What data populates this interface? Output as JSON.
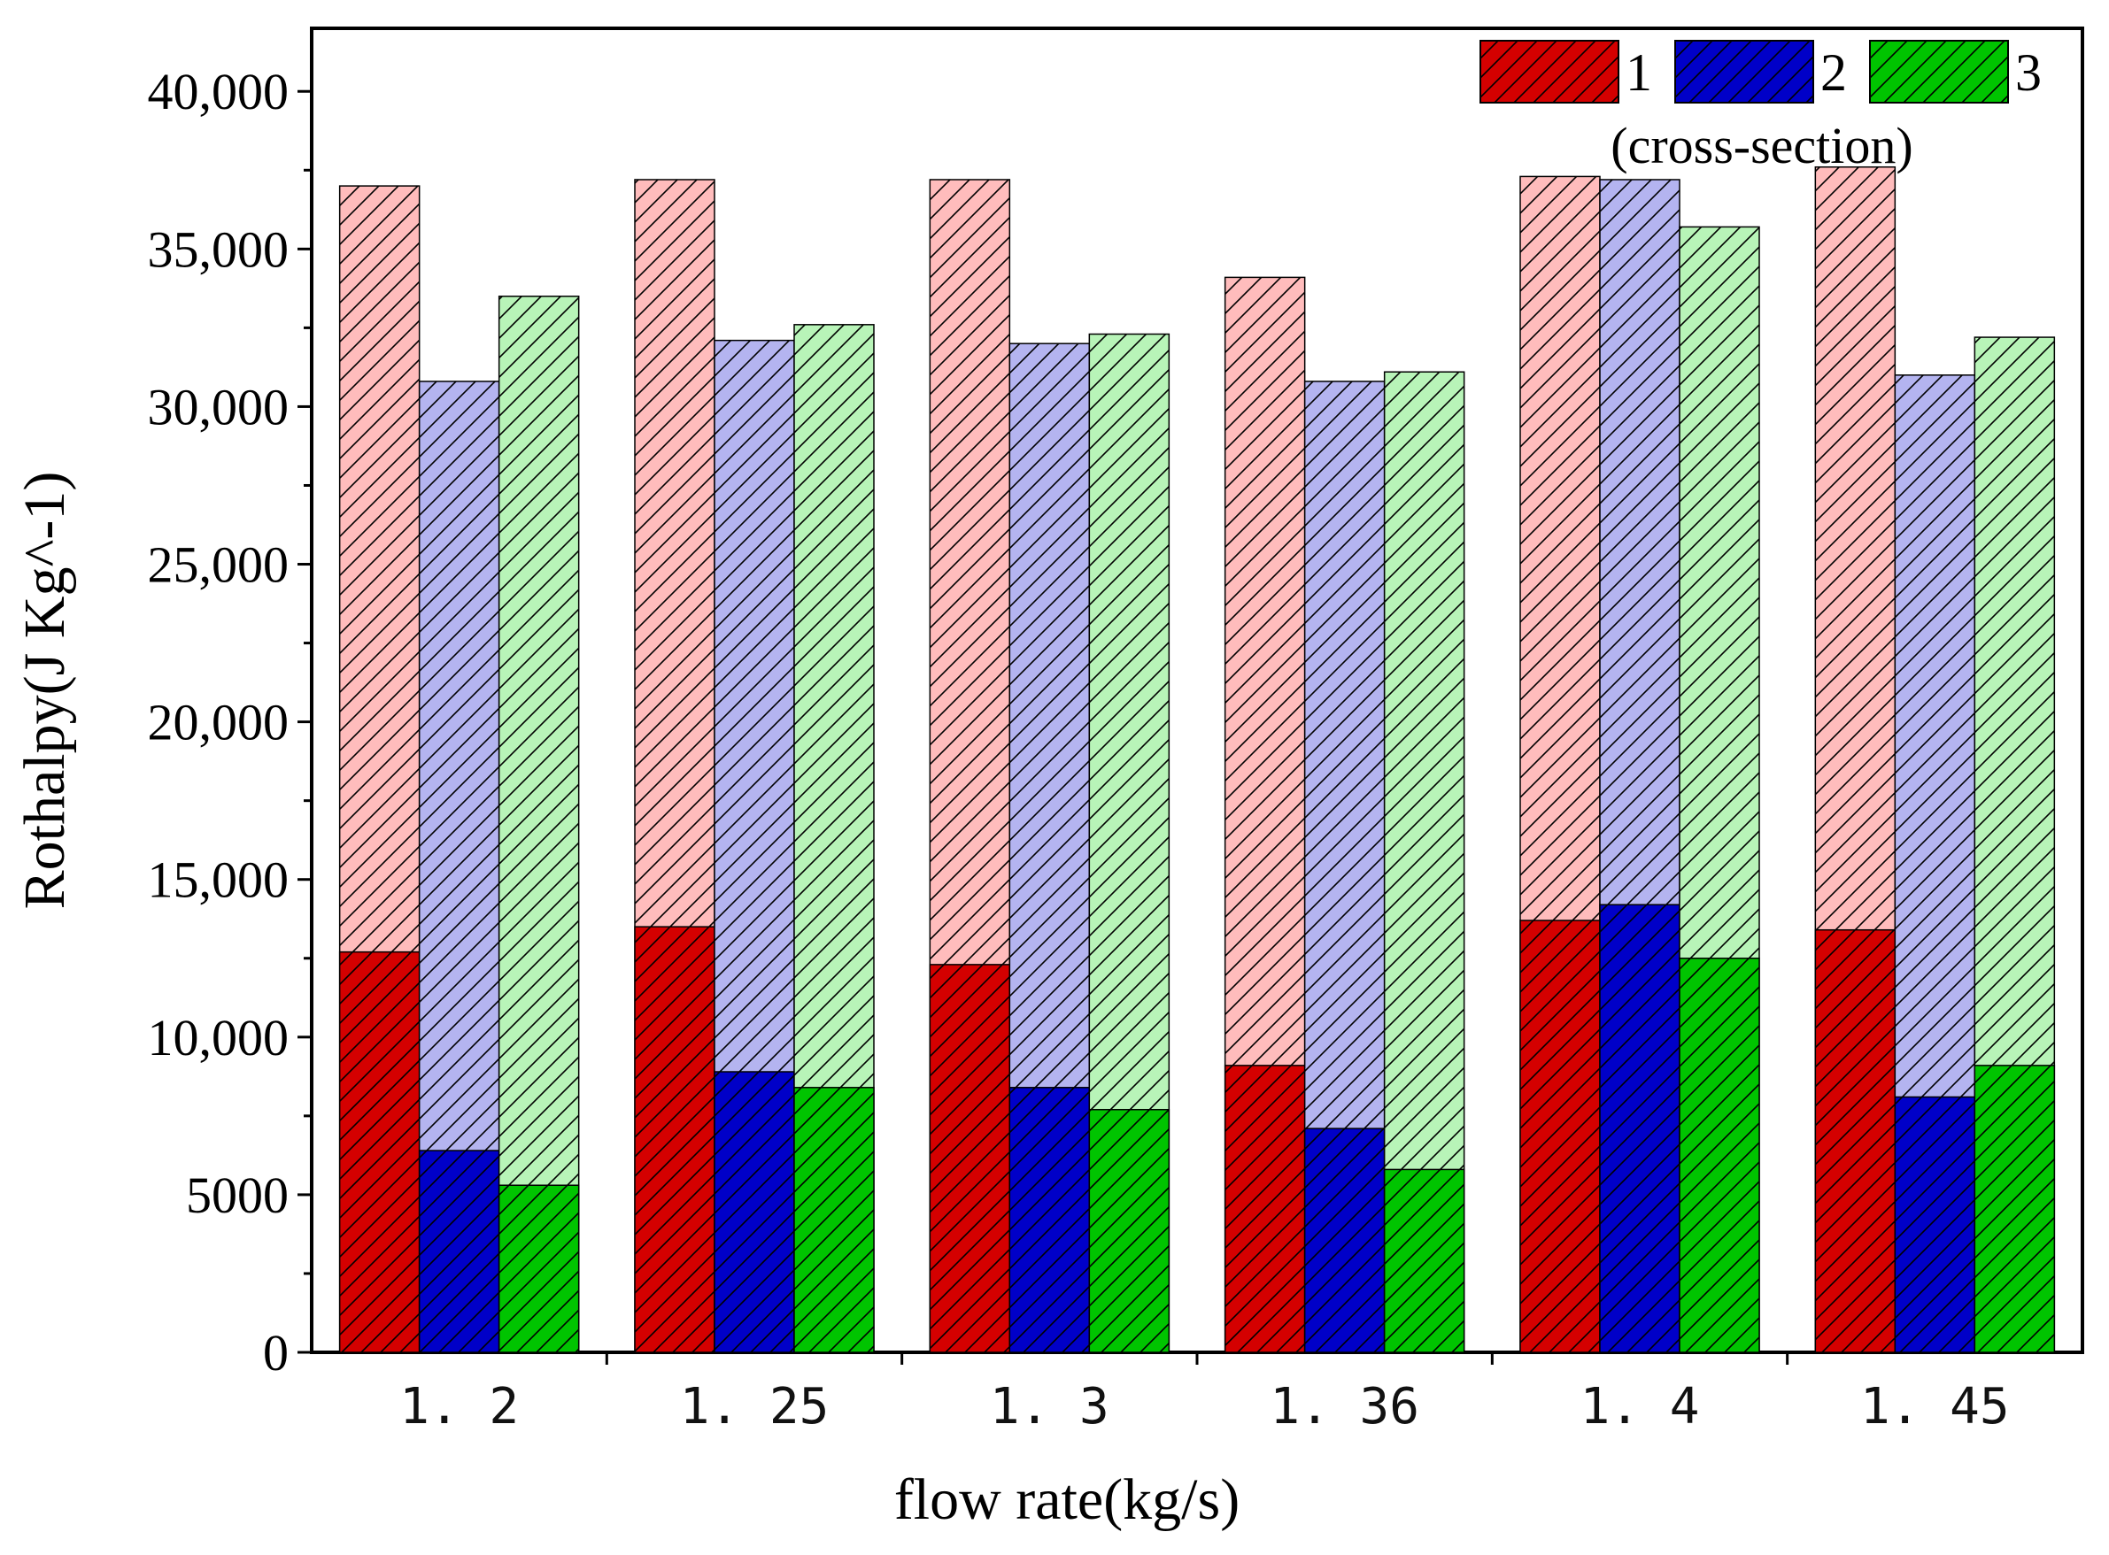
{
  "chart_data": {
    "type": "bar",
    "stacked_overlay": true,
    "title": "",
    "xlabel": "flow rate(kg/s)",
    "ylabel": "Rothalpy(J Kg^-1)",
    "ylim": [
      0,
      42000
    ],
    "yticks": [
      0,
      5000,
      10000,
      15000,
      20000,
      25000,
      30000,
      35000,
      40000
    ],
    "ytick_labels": [
      "0",
      "5000",
      "10,000",
      "15,000",
      "20,000",
      "25,000",
      "30,000",
      "35,000",
      "40,000"
    ],
    "categories": [
      "1. 2",
      "1. 25",
      "1. 3",
      "1. 36",
      "1. 4",
      "1. 45"
    ],
    "legend_title": "(cross-section)",
    "legend_position": "top-right",
    "series": [
      {
        "name": "1",
        "color": "#d40000",
        "light_color": "#ffbcbc",
        "values": [
          12700,
          13500,
          12300,
          9100,
          13700,
          13400
        ],
        "totals": [
          37000,
          37200,
          37200,
          34100,
          37300,
          37600
        ]
      },
      {
        "name": "2",
        "color": "#0000c8",
        "light_color": "#b4b4f0",
        "values": [
          6400,
          8900,
          8400,
          7100,
          14200,
          8100
        ],
        "totals": [
          30800,
          32100,
          32000,
          30800,
          37200,
          31000
        ]
      },
      {
        "name": "3",
        "color": "#00c400",
        "light_color": "#b8f4b8",
        "values": [
          5300,
          8400,
          7700,
          5800,
          12500,
          9100
        ],
        "totals": [
          33500,
          32600,
          32300,
          31100,
          35700,
          32200
        ]
      }
    ]
  }
}
